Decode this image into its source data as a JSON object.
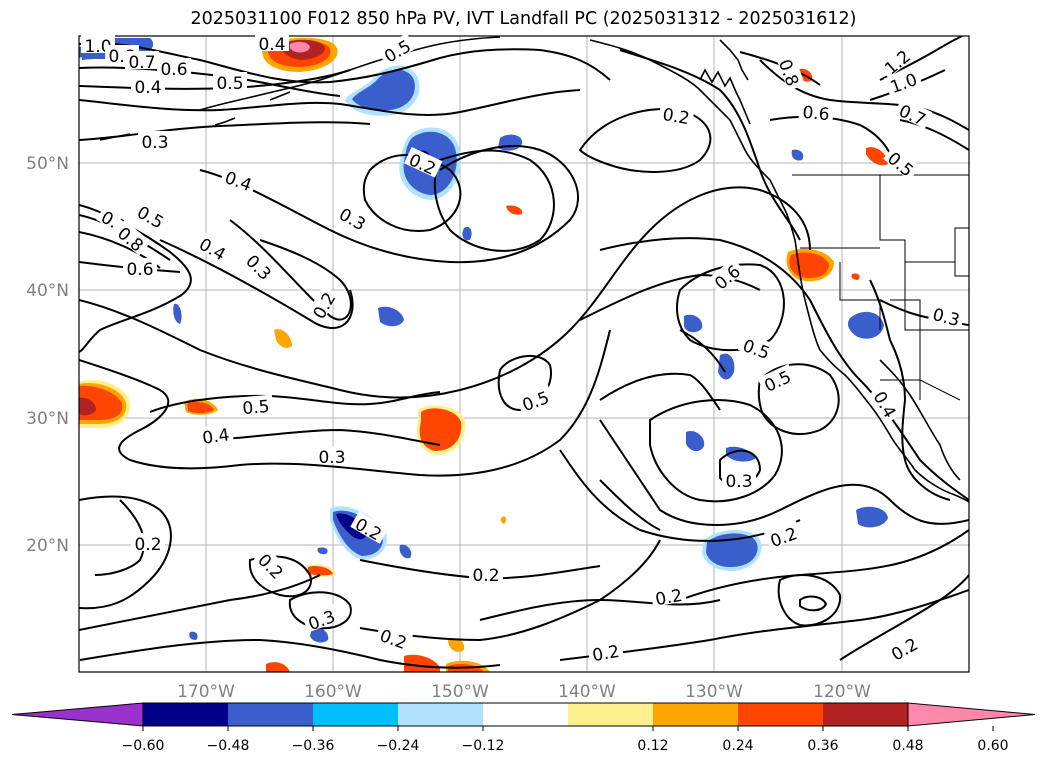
{
  "title": "2025031100 F012 850 hPa PV, IVT Landfall PC (2025031312 - 2025031612)",
  "axes": {
    "lat_labels": [
      "50°N",
      "40°N",
      "30°N",
      "20°N"
    ],
    "lon_labels": [
      "170°W",
      "160°W",
      "150°W",
      "140°W",
      "130°W",
      "120°W"
    ]
  },
  "contour_labels": {
    "a": "1.0",
    "b": "0.8",
    "c": "0.7",
    "d": "0.6",
    "e": "0.4",
    "f": "0.5",
    "g": "0.3",
    "h": "0.4",
    "i": "0.4",
    "j": "0.2",
    "k": "0.3",
    "l": "0.5",
    "m": "0.7",
    "n": "0.8",
    "o": "0.6",
    "p": "0.4",
    "q": "0.3",
    "r": "0.2",
    "s": "0.5",
    "t": "0.4",
    "u": "0.3",
    "v": "0.5",
    "w": "0.2",
    "x": "0.6",
    "y": "0.5",
    "z": "0.5",
    "aa": "0.3",
    "ab": "0.2",
    "ac": "0.2",
    "ad": "0.3",
    "ae": "0.2",
    "af": "0.2",
    "ag": "0.2",
    "ah": "0.2",
    "ai": "0.2",
    "aj": "0.2",
    "ak": "0.4",
    "al": "0.3",
    "am": "0.8",
    "an": "1.2",
    "ao": "1.0",
    "ap": "0.6",
    "aq": "0.7",
    "ar": "0.5",
    "as": "0.5",
    "at": "0.2"
  },
  "colorbar": {
    "ticks": [
      "−0.60",
      "−0.48",
      "−0.36",
      "−0.24",
      "−0.12",
      "0.12",
      "0.24",
      "0.36",
      "0.48",
      "0.60"
    ],
    "colors": [
      "#9932cc",
      "#00008b",
      "#3a5fcd",
      "#00bfff",
      "#b0e2ff",
      "#ffffff",
      "#fff08f",
      "#ffa500",
      "#ff4500",
      "#b22222",
      "#ff87ab"
    ]
  }
}
